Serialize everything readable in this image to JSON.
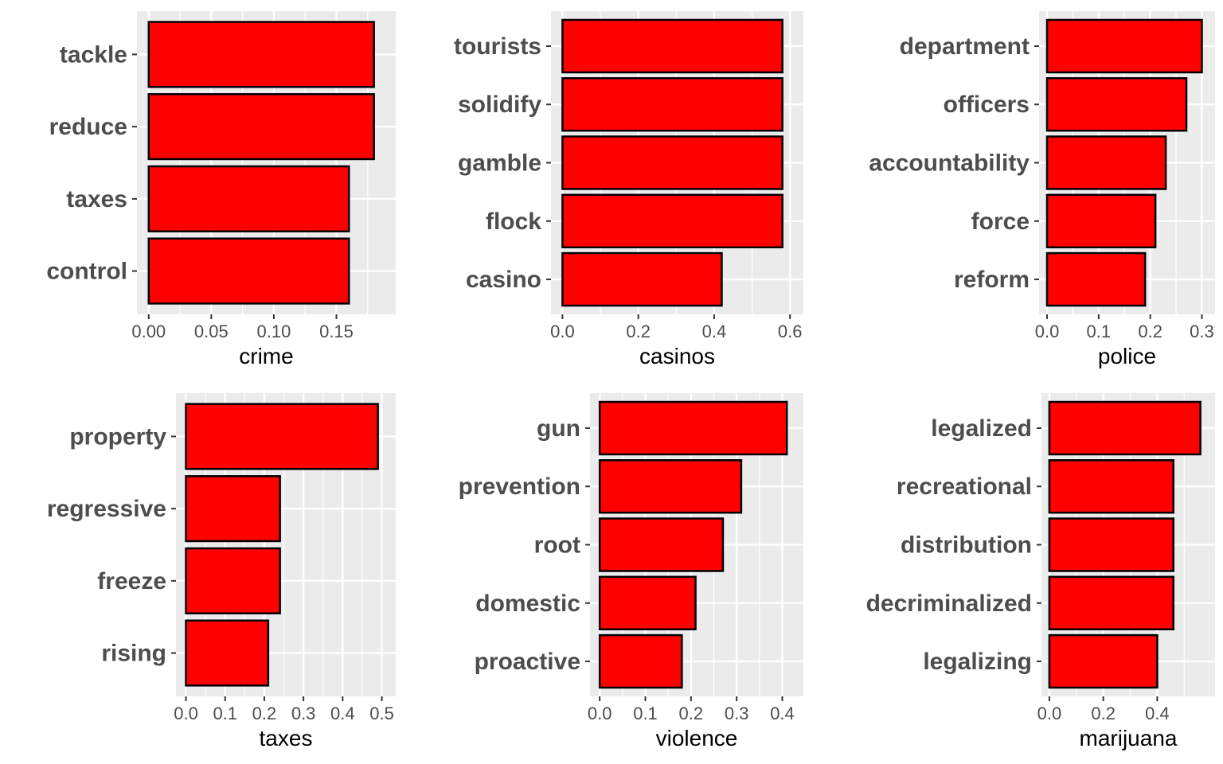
{
  "chart_data": [
    {
      "type": "bar",
      "orientation": "horizontal",
      "xlabel": "crime",
      "categories": [
        "tackle",
        "reduce",
        "taxes",
        "control"
      ],
      "values": [
        0.18,
        0.18,
        0.16,
        0.16
      ],
      "xlim": [
        0,
        0.188
      ],
      "xticks": [
        0.0,
        0.05,
        0.1,
        0.15
      ],
      "xtick_labels": [
        "0.00",
        "0.05",
        "0.10",
        "0.15"
      ],
      "grid": true
    },
    {
      "type": "bar",
      "orientation": "horizontal",
      "xlabel": "casinos",
      "categories": [
        "tourists",
        "solidify",
        "gamble",
        "flock",
        "casino"
      ],
      "values": [
        0.58,
        0.58,
        0.58,
        0.58,
        0.42
      ],
      "xlim": [
        0,
        0.605
      ],
      "xticks": [
        0.0,
        0.2,
        0.4,
        0.6
      ],
      "xtick_labels": [
        "0.0",
        "0.2",
        "0.4",
        "0.6"
      ],
      "grid": true
    },
    {
      "type": "bar",
      "orientation": "horizontal",
      "xlabel": "police",
      "categories": [
        "department",
        "officers",
        "accountability",
        "force",
        "reform"
      ],
      "values": [
        0.3,
        0.27,
        0.23,
        0.21,
        0.19
      ],
      "xlim": [
        0,
        0.31
      ],
      "xticks": [
        0.0,
        0.1,
        0.2,
        0.3
      ],
      "xtick_labels": [
        "0.0",
        "0.1",
        "0.2",
        "0.3"
      ],
      "grid": true
    },
    {
      "type": "bar",
      "orientation": "horizontal",
      "xlabel": "taxes",
      "categories": [
        "property",
        "regressive",
        "freeze",
        "rising"
      ],
      "values": [
        0.49,
        0.24,
        0.24,
        0.21
      ],
      "xlim": [
        0,
        0.51
      ],
      "xticks": [
        0.0,
        0.1,
        0.2,
        0.3,
        0.4,
        0.5
      ],
      "xtick_labels": [
        "0.0",
        "0.1",
        "0.2",
        "0.3",
        "0.4",
        "0.5"
      ],
      "grid": true
    },
    {
      "type": "bar",
      "orientation": "horizontal",
      "xlabel": "violence",
      "categories": [
        "gun",
        "prevention",
        "root",
        "domestic",
        "proactive"
      ],
      "values": [
        0.41,
        0.31,
        0.27,
        0.21,
        0.18
      ],
      "xlim": [
        0,
        0.425
      ],
      "xticks": [
        0.0,
        0.1,
        0.2,
        0.3,
        0.4
      ],
      "xtick_labels": [
        "0.0",
        "0.1",
        "0.2",
        "0.3",
        "0.4"
      ],
      "grid": true
    },
    {
      "type": "bar",
      "orientation": "horizontal",
      "xlabel": "marijuana",
      "categories": [
        "legalized",
        "recreational",
        "distribution",
        "decriminalized",
        "legalizing"
      ],
      "values": [
        0.56,
        0.46,
        0.46,
        0.46,
        0.4
      ],
      "xlim": [
        0,
        0.585
      ],
      "xticks": [
        0.0,
        0.2,
        0.4
      ],
      "xtick_labels": [
        "0.0",
        "0.2",
        "0.4"
      ],
      "grid": true
    }
  ],
  "colors": {
    "bar_fill": "#ff0000",
    "bar_stroke": "#000000",
    "panel_bg": "#ebebeb",
    "grid_major": "#ffffff",
    "label_text": "#4d4d4d",
    "title_text": "#000000"
  }
}
